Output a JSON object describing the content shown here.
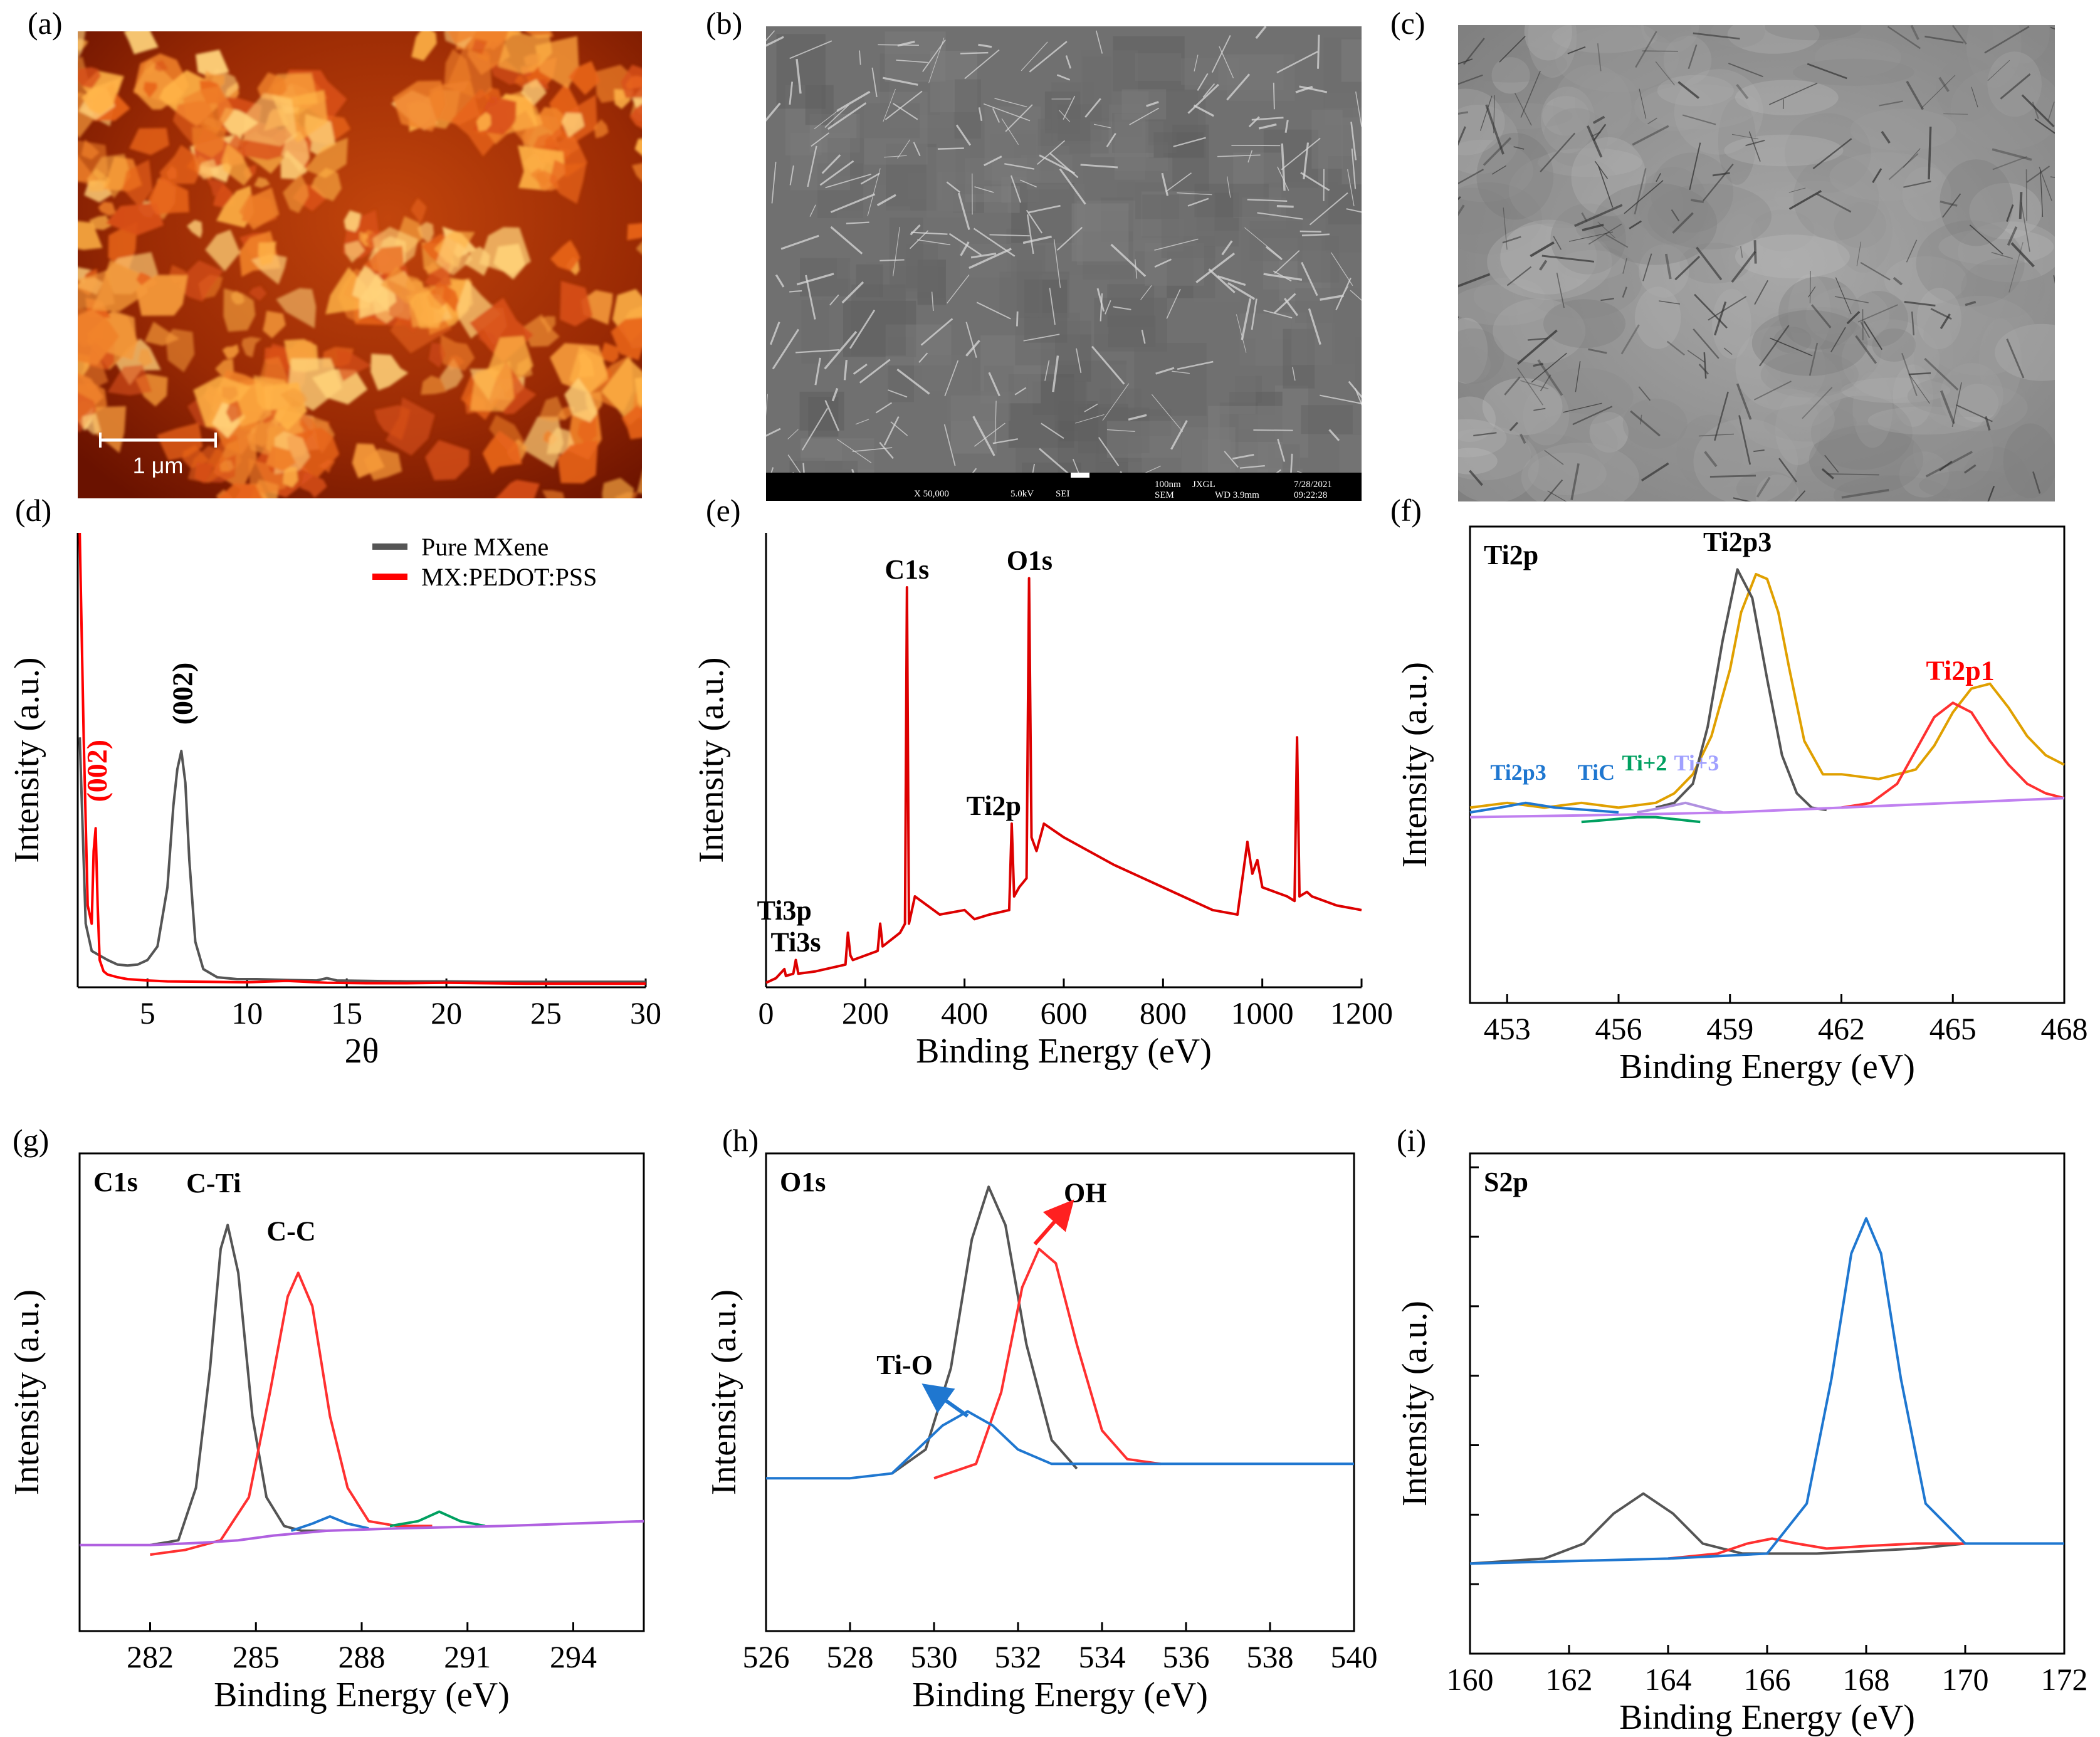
{
  "panel_labels": [
    "(a)",
    "(b)",
    "(c)",
    "(d)",
    "(e)",
    "(f)",
    "(g)",
    "(h)",
    "(i)"
  ],
  "afm_image": {
    "scale_bar_label": "1 μm",
    "colors": {
      "dark": "#6a1200",
      "mid": "#c83a00",
      "bright": "#ffb347"
    }
  },
  "sem_image": {
    "footer_text": [
      "X 50,000",
      "5.0kV",
      "SEI",
      "100nm",
      "JXGL",
      "7/28/2021",
      "SEM",
      "WD 3.9mm",
      "09:22:28"
    ],
    "colors": {
      "bg": "#707070",
      "footer": "#000000"
    }
  },
  "tem_image": {
    "colors": {
      "bg": "#9a9a9a"
    }
  },
  "chart_data": [
    {
      "id": "d",
      "type": "line",
      "xlabel": "2θ",
      "ylabel": "Intensity (a.u.)",
      "xlim": [
        1.5,
        30
      ],
      "ylim": [
        0,
        100
      ],
      "xticks": [
        5,
        10,
        15,
        20,
        25,
        30
      ],
      "legend": {
        "placement": "top-right",
        "entries": [
          "Pure MXene",
          "MX:PEDOT:PSS"
        ]
      },
      "series": [
        {
          "name": "Pure MXene",
          "color": "#555555",
          "x": [
            1.6,
            1.9,
            2.2,
            2.6,
            3.0,
            3.5,
            4.0,
            4.5,
            5.0,
            5.5,
            6.0,
            6.3,
            6.5,
            6.7,
            6.9,
            7.1,
            7.4,
            7.8,
            8.5,
            9.5,
            10.5,
            12,
            13.5,
            14,
            14.5,
            16,
            18,
            20,
            22,
            24,
            26,
            28,
            30
          ],
          "y": [
            55,
            14,
            8,
            7,
            6,
            5,
            4.8,
            5,
            6,
            9,
            22,
            40,
            48,
            52,
            45,
            28,
            10,
            4,
            2.2,
            1.8,
            1.8,
            1.6,
            1.5,
            2.0,
            1.5,
            1.4,
            1.3,
            1.3,
            1.2,
            1.2,
            1.2,
            1.2,
            1.2
          ]
        },
        {
          "name": "MX:PEDOT:PSS",
          "color": "#ff0000",
          "x": [
            1.6,
            1.8,
            2.0,
            2.2,
            2.3,
            2.4,
            2.5,
            2.6,
            2.8,
            3.0,
            3.5,
            4.0,
            5.0,
            6.0,
            8.0,
            10.0,
            12.0,
            14.0,
            16.0,
            18.0,
            20.0,
            22.0,
            24.0,
            26.0,
            28.0,
            30.0
          ],
          "y": [
            100,
            55,
            18,
            14,
            30,
            35,
            18,
            6,
            3.5,
            2.8,
            2.2,
            1.8,
            1.5,
            1.3,
            1.2,
            1.1,
            1.4,
            1.0,
            0.9,
            0.9,
            1.0,
            0.9,
            0.8,
            0.8,
            0.8,
            0.8
          ]
        }
      ],
      "annotations": [
        {
          "text": "(002)",
          "x": 6.8,
          "y": 55,
          "color": "#000000"
        },
        {
          "text": "(002)",
          "x": 2.5,
          "y": 38,
          "color": "#ff0000"
        }
      ]
    },
    {
      "id": "e",
      "type": "line",
      "xlabel": "Binding Energy (eV)",
      "ylabel": "Intensity (a.u.)",
      "xlim": [
        0,
        1200
      ],
      "ylim": [
        0,
        100
      ],
      "xticks": [
        0,
        200,
        400,
        600,
        800,
        1000,
        1200
      ],
      "series": [
        {
          "name": "",
          "color": "#dd0000",
          "x": [
            0,
            20,
            37,
            40,
            55,
            60,
            65,
            100,
            160,
            165,
            170,
            175,
            200,
            225,
            230,
            235,
            270,
            280,
            284,
            288,
            300,
            350,
            400,
            420,
            450,
            490,
            495,
            500,
            510,
            525,
            530,
            535,
            545,
            560,
            600,
            700,
            800,
            900,
            950,
            970,
            980,
            990,
            1000,
            1050,
            1065,
            1070,
            1075,
            1090,
            1100,
            1150,
            1200
          ],
          "y": [
            1,
            2,
            4,
            2.5,
            3,
            6,
            3,
            3.5,
            5,
            12,
            7,
            6,
            7,
            8,
            14,
            9,
            12,
            14,
            88,
            14,
            20,
            16,
            17,
            15,
            16,
            17,
            36,
            20,
            22,
            24,
            90,
            33,
            30,
            36,
            33,
            27,
            22,
            17,
            16,
            32,
            25,
            28,
            22,
            20,
            19,
            55,
            20,
            21,
            20,
            18,
            17
          ]
        }
      ],
      "annotations": [
        {
          "text": "C1s",
          "x": 284,
          "y": 88
        },
        {
          "text": "O1s",
          "x": 531,
          "y": 90
        },
        {
          "text": "Ti2p",
          "x": 459,
          "y": 36
        },
        {
          "text": "Ti3p",
          "x": 37,
          "y": 13
        },
        {
          "text": "Ti3s",
          "x": 60,
          "y": 6
        }
      ]
    },
    {
      "id": "f",
      "type": "line",
      "xlabel": "Binding Energy (eV)",
      "ylabel": "Intensity (a.u.)",
      "xlim": [
        452,
        468
      ],
      "ylim": [
        0,
        100
      ],
      "xticks": [
        453,
        456,
        459,
        462,
        465,
        468
      ],
      "title_inset": "Ti2p",
      "series": [
        {
          "name": "",
          "color": "#e0a000",
          "x": [
            452,
            453,
            454,
            455,
            456,
            457,
            457.5,
            458,
            458.5,
            459,
            459.3,
            459.7,
            460,
            460.3,
            460.6,
            461,
            461.5,
            462,
            463,
            464,
            464.5,
            465,
            465.5,
            466,
            466.5,
            467,
            467.5,
            468
          ],
          "y": [
            41,
            42,
            41,
            42,
            41,
            42,
            44,
            48,
            56,
            70,
            82,
            90,
            89,
            82,
            70,
            55,
            48,
            48,
            47,
            49,
            54,
            61,
            66,
            67,
            62,
            56,
            52,
            50
          ]
        },
        {
          "name": "",
          "color": "#555555",
          "x": [
            457,
            457.5,
            458,
            458.4,
            458.8,
            459.2,
            459.6,
            460,
            460.4,
            460.8,
            461.2,
            461.6
          ],
          "y": [
            41,
            42,
            46,
            58,
            76,
            91,
            85,
            68,
            52,
            44,
            41,
            40.5
          ]
        },
        {
          "name": "",
          "color": "#ff3030",
          "x": [
            462,
            462.8,
            463.5,
            464,
            464.5,
            465,
            465.5,
            466,
            466.5,
            467,
            467.5,
            468
          ],
          "y": [
            41,
            42,
            46,
            53,
            60,
            63,
            61,
            55,
            50,
            46,
            44,
            43
          ]
        },
        {
          "name": "",
          "color": "#1f77d0",
          "x": [
            452,
            452.8,
            453.5,
            454.3,
            455.2,
            456
          ],
          "y": [
            40,
            41,
            42,
            41,
            40.5,
            40
          ]
        },
        {
          "name": "",
          "color": "#00a060",
          "x": [
            455,
            455.8,
            456.5,
            457,
            457.6,
            458.2
          ],
          "y": [
            38,
            38.5,
            39,
            39,
            38.5,
            38
          ]
        },
        {
          "name": "",
          "color": "#b090e0",
          "x": [
            456.5,
            457.2,
            457.8,
            458.3,
            458.8
          ],
          "y": [
            40,
            41,
            42,
            41,
            40
          ]
        },
        {
          "name": "",
          "color": "#c080f0",
          "x": [
            452,
            456,
            459,
            462,
            465,
            468
          ],
          "y": [
            39,
            39.5,
            40,
            41,
            42,
            43
          ]
        }
      ],
      "annotations": [
        {
          "text": "Ti2p3",
          "x": 459.2,
          "y": 93,
          "color": "#000000"
        },
        {
          "text": "Ti2p1",
          "x": 465.2,
          "y": 66,
          "color": "#ff0000"
        },
        {
          "text": "Ti2p3",
          "x": 453.3,
          "y": 45,
          "color": "#1f77d0"
        },
        {
          "text": "TiC",
          "x": 455.4,
          "y": 45,
          "color": "#1f77d0"
        },
        {
          "text": "Ti+2",
          "x": 456.7,
          "y": 47,
          "color": "#00a060"
        },
        {
          "text": "Ti+3",
          "x": 458.1,
          "y": 47,
          "color": "#a0a0ff"
        }
      ]
    },
    {
      "id": "g",
      "type": "line",
      "xlabel": "Binding Energy (eV)",
      "ylabel": "Intensity (a.u.)",
      "xlim": [
        280,
        296
      ],
      "ylim": [
        0,
        100
      ],
      "xticks": [
        282,
        285,
        288,
        291,
        294
      ],
      "title_inset": "C1s",
      "series": [
        {
          "name": "",
          "color": "#555555",
          "x": [
            282,
            282.8,
            283.3,
            283.7,
            284.0,
            284.2,
            284.5,
            284.9,
            285.3,
            285.8,
            286.3,
            287
          ],
          "y": [
            18,
            19,
            30,
            55,
            80,
            85,
            75,
            45,
            28,
            22,
            21,
            21
          ]
        },
        {
          "name": "",
          "color": "#ff3030",
          "x": [
            282,
            283,
            284,
            284.8,
            285.4,
            285.9,
            286.2,
            286.6,
            287.1,
            287.6,
            288.2,
            289,
            290
          ],
          "y": [
            16,
            17,
            19,
            28,
            50,
            70,
            75,
            68,
            45,
            30,
            23,
            22,
            22
          ]
        },
        {
          "name": "",
          "color": "#1f77d0",
          "x": [
            286,
            286.6,
            287.1,
            287.6,
            288.2
          ],
          "y": [
            21,
            22.5,
            24,
            22.5,
            21.5
          ]
        },
        {
          "name": "",
          "color": "#00a060",
          "x": [
            288.8,
            289.6,
            290.2,
            290.8,
            291.5
          ],
          "y": [
            22,
            23,
            25,
            23,
            22
          ]
        },
        {
          "name": "",
          "color": "#b060e0",
          "x": [
            280,
            282,
            283.5,
            284.5,
            285.5,
            287,
            289,
            292,
            296
          ],
          "y": [
            18,
            18,
            18.5,
            19,
            20,
            21,
            21.5,
            22,
            23
          ]
        }
      ],
      "annotations": [
        {
          "text": "C-Ti",
          "x": 283.8,
          "y": 90
        },
        {
          "text": "C-C",
          "x": 286.0,
          "y": 80
        }
      ]
    },
    {
      "id": "h",
      "type": "line",
      "xlabel": "Binding Energy (eV)",
      "ylabel": "Intensity (a.u.)",
      "xlim": [
        526,
        540
      ],
      "ylim": [
        0,
        100
      ],
      "xticks": [
        526,
        528,
        530,
        532,
        534,
        536,
        538,
        540
      ],
      "title_inset": "O1s",
      "series": [
        {
          "name": "",
          "color": "#555555",
          "x": [
            529,
            529.8,
            530.4,
            530.9,
            531.3,
            531.7,
            532.2,
            532.8,
            533.4
          ],
          "y": [
            33,
            38,
            55,
            82,
            93,
            85,
            60,
            40,
            34
          ]
        },
        {
          "name": "",
          "color": "#ff3030",
          "x": [
            530,
            531,
            531.6,
            532.1,
            532.5,
            532.9,
            533.4,
            534,
            534.6,
            535.4
          ],
          "y": [
            32,
            35,
            50,
            72,
            80,
            77,
            60,
            42,
            36,
            35
          ]
        },
        {
          "name": "",
          "color": "#1f77d0",
          "x": [
            526,
            528,
            529,
            529.6,
            530.2,
            530.8,
            531.4,
            532,
            532.8,
            534,
            536,
            540
          ],
          "y": [
            32,
            32,
            33,
            38,
            43,
            46,
            43,
            38,
            35,
            35,
            35,
            35
          ]
        }
      ],
      "annotations": [
        {
          "text": "Ti-O",
          "x": 529.3,
          "y": 52
        },
        {
          "text": "OH",
          "x": 533.6,
          "y": 88
        }
      ]
    },
    {
      "id": "i",
      "type": "line",
      "xlabel": "Binding Energy (eV)",
      "ylabel": "Intensity (a.u.)",
      "xlim": [
        160,
        172
      ],
      "ylim": [
        0,
        100
      ],
      "xticks": [
        160,
        162,
        164,
        166,
        168,
        170,
        172
      ],
      "title_inset": "S2p",
      "series": [
        {
          "name": "",
          "color": "#555555",
          "x": [
            160,
            161.5,
            162.3,
            162.9,
            163.5,
            164.1,
            164.7,
            165.5,
            167,
            169,
            170
          ],
          "y": [
            18,
            19,
            22,
            28,
            32,
            28,
            22,
            20,
            20,
            21,
            22
          ]
        },
        {
          "name": "",
          "color": "#ff3030",
          "x": [
            164,
            165,
            165.6,
            166.1,
            166.6,
            167.2,
            168,
            169,
            170
          ],
          "y": [
            19,
            20,
            22,
            23,
            22,
            21,
            21.5,
            22,
            22
          ]
        },
        {
          "name": "",
          "color": "#1f77d0",
          "x": [
            160,
            164,
            166,
            166.8,
            167.3,
            167.7,
            168,
            168.3,
            168.7,
            169.2,
            170,
            172
          ],
          "y": [
            18,
            19,
            20,
            30,
            55,
            80,
            87,
            80,
            55,
            30,
            22,
            22
          ]
        }
      ]
    }
  ]
}
